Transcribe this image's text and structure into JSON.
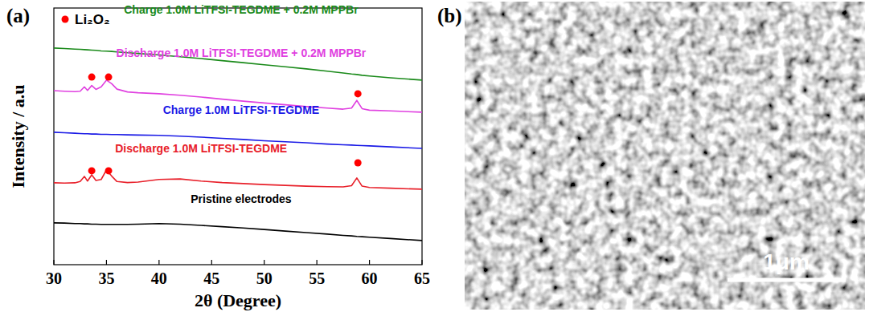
{
  "chart_data": {
    "type": "line",
    "title": "(a)",
    "x_label": "2θ (Degree)",
    "y_label": "Intensity / a.u",
    "x": [
      30,
      31,
      32,
      32.5,
      32.9,
      33.2,
      33.6,
      34,
      34.5,
      35,
      35.5,
      36,
      37,
      38,
      40,
      42,
      44,
      46,
      48,
      50,
      52,
      54,
      56,
      57.5,
      58.3,
      58.8,
      59.3,
      60,
      62,
      65
    ],
    "xlim": [
      30,
      65
    ],
    "xticks": [
      30,
      35,
      40,
      45,
      50,
      55,
      60,
      65
    ],
    "ylim": [
      0,
      100
    ],
    "yticks": [],
    "tick_labels": "x",
    "grid": false,
    "legend": "top-left",
    "series": [
      {
        "color": "#000000",
        "values": [
          16.3,
          16.2,
          16.0,
          16.0,
          15.9,
          15.9,
          15.8,
          15.8,
          15.7,
          15.7,
          15.7,
          15.7,
          15.7,
          15.8,
          16.0,
          15.8,
          15.3,
          14.8,
          14.3,
          13.7,
          13.1,
          12.5,
          11.9,
          11.4,
          11.2,
          11.0,
          10.9,
          10.7,
          10.2,
          9.4
        ]
      },
      {
        "color": "#e8202a",
        "values": [
          31.9,
          31.8,
          31.9,
          32.4,
          34.4,
          32.6,
          35.0,
          32.8,
          33.2,
          36.9,
          34.5,
          32.4,
          32.0,
          32.2,
          33.2,
          33.4,
          32.6,
          32.0,
          31.6,
          31.2,
          30.9,
          30.6,
          30.4,
          30.3,
          30.8,
          33.8,
          30.6,
          30.1,
          29.8,
          29.4
        ]
      },
      {
        "color": "#1a1ae6",
        "values": [
          51.6,
          51.4,
          51.2,
          51.1,
          51.0,
          51.0,
          50.9,
          50.9,
          50.8,
          50.8,
          50.7,
          50.7,
          50.6,
          50.5,
          50.4,
          50.1,
          49.7,
          49.2,
          48.8,
          48.3,
          47.9,
          47.5,
          47.0,
          46.7,
          46.6,
          46.5,
          46.4,
          46.3,
          45.9,
          45.3
        ]
      },
      {
        "color": "#e040e0",
        "values": [
          67.8,
          67.6,
          67.4,
          67.6,
          69.3,
          67.9,
          69.8,
          68.3,
          69.3,
          71.9,
          70.5,
          68.4,
          67.3,
          67.0,
          66.6,
          66.0,
          65.3,
          64.5,
          63.7,
          63.0,
          62.3,
          61.6,
          61.0,
          60.6,
          61.0,
          64.0,
          60.8,
          60.2,
          59.9,
          59.4
        ]
      },
      {
        "color": "#1a8a1a",
        "values": [
          84.4,
          84.2,
          84.0,
          83.9,
          83.8,
          83.7,
          83.6,
          83.5,
          83.3,
          83.2,
          83.1,
          82.9,
          82.6,
          82.3,
          81.7,
          81.0,
          80.3,
          79.5,
          78.7,
          77.9,
          77.1,
          76.3,
          75.4,
          74.7,
          74.3,
          74.1,
          73.8,
          73.5,
          72.8,
          71.9
        ]
      },
      {
        "name": "Li₂O₂",
        "type": "scatter",
        "marker": "circle",
        "color": "#ff0000",
        "x": [
          33.6,
          35.2,
          58.9,
          33.6,
          35.2,
          58.9
        ],
        "values": [
          36.6,
          36.6,
          39.7,
          73.1,
          73.1,
          66.6
        ]
      }
    ],
    "annotations": [
      {
        "text": "Pristine electrodes",
        "x": 47.8,
        "y": 24.1,
        "color": "#000000"
      },
      {
        "text": "Discharge 1.0M LiTFSI-TEGDME",
        "x": 44.0,
        "y": 43.8,
        "color": "#e8202a"
      },
      {
        "text": "Charge 1.0M LiTFSI-TEGDME",
        "x": 47.8,
        "y": 58.8,
        "color": "#1a1ae6"
      },
      {
        "text": "Discharge 1.0M LiTFSI-TEGDME + 0.2M MPPBr",
        "x": 47.8,
        "y": 80.9,
        "color": "#e040e0"
      },
      {
        "text": "Charge 1.0M LiTFSI-TEGDME + 0.2M MPPBr",
        "x": 47.8,
        "y": 97.8,
        "color": "#1a8a1a"
      }
    ]
  },
  "image": {
    "label": "(b)",
    "scale_bar": "1μm"
  }
}
